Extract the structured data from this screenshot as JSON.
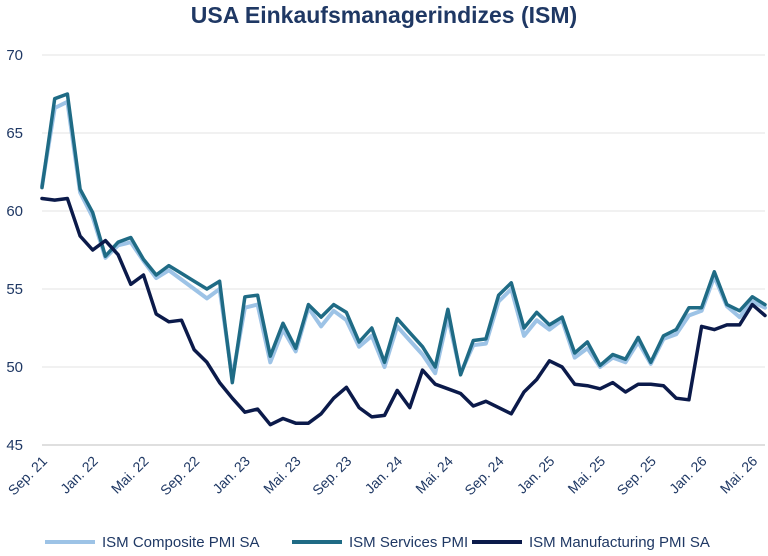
{
  "chart_data": {
    "type": "line",
    "title": "USA Einkaufsmanagerindizes (ISM)",
    "xlabel": "",
    "ylabel": "",
    "ylim": [
      45,
      70
    ],
    "yticks": [
      45,
      50,
      55,
      60,
      65,
      70
    ],
    "x_tick_labels": [
      "Sep. 21",
      "Jan. 22",
      "Mai. 22",
      "Sep. 22",
      "Jan. 23",
      "Mai. 23",
      "Sep. 23",
      "Jan. 24",
      "Mai. 24",
      "Sep. 24",
      "Jan. 25",
      "Mai. 25",
      "Sep. 25",
      "Jan. 26",
      "Mai. 26"
    ],
    "x_start": "Sep. 21",
    "x_end": "Jun. 26",
    "grid": "horizontal",
    "legend_position": "bottom",
    "series": [
      {
        "name": "ISM Composite PMI SA",
        "color": "#9dc3e6",
        "values": [
          61.6,
          66.6,
          67.0,
          61.2,
          59.6,
          57.0,
          57.8,
          58.0,
          56.8,
          55.7,
          56.2,
          55.6,
          55.0,
          54.4,
          55.0,
          49.3,
          53.8,
          54.0,
          50.3,
          52.4,
          51.0,
          53.8,
          52.6,
          53.6,
          53.0,
          51.3,
          52.0,
          50.0,
          52.6,
          51.7,
          50.8,
          49.6,
          53.2,
          49.6,
          51.4,
          51.5,
          54.2,
          55.0,
          52.0,
          53.0,
          52.4,
          53.0,
          50.6,
          51.2,
          50.0,
          50.6,
          50.3,
          51.6,
          50.2,
          51.8,
          52.1,
          53.3,
          53.6,
          55.8,
          53.9,
          53.2,
          54.2,
          53.8
        ]
      },
      {
        "name": "ISM Services PMI",
        "color": "#1f6b85",
        "values": [
          61.5,
          67.2,
          67.5,
          61.4,
          59.9,
          57.1,
          58.0,
          58.3,
          56.9,
          55.9,
          56.5,
          56.0,
          55.5,
          55.0,
          55.5,
          49.0,
          54.5,
          54.6,
          50.7,
          52.8,
          51.2,
          54.0,
          53.2,
          54.0,
          53.5,
          51.6,
          52.5,
          50.3,
          53.1,
          52.2,
          51.3,
          50.0,
          53.7,
          49.5,
          51.7,
          51.8,
          54.6,
          55.4,
          52.5,
          53.5,
          52.7,
          53.2,
          50.9,
          51.6,
          50.1,
          50.8,
          50.5,
          51.9,
          50.3,
          52.0,
          52.4,
          53.8,
          53.8,
          56.1,
          54.0,
          53.6,
          54.5,
          54.0
        ]
      },
      {
        "name": "ISM Manufacturing PMI SA",
        "color": "#0b1a4a",
        "values": [
          60.8,
          60.7,
          60.8,
          58.4,
          57.5,
          58.1,
          57.2,
          55.3,
          55.9,
          53.4,
          52.9,
          53.0,
          51.1,
          50.3,
          49.0,
          48.0,
          47.1,
          47.3,
          46.3,
          46.7,
          46.4,
          46.4,
          47.0,
          48.0,
          48.7,
          47.4,
          46.8,
          46.9,
          48.5,
          47.4,
          49.8,
          48.9,
          48.6,
          48.3,
          47.5,
          47.8,
          47.4,
          47.0,
          48.4,
          49.2,
          50.4,
          50.0,
          48.9,
          48.8,
          48.6,
          49.0,
          48.4,
          48.9,
          48.9,
          48.8,
          48.0,
          47.9,
          52.6,
          52.4,
          52.7,
          52.7,
          54.0,
          53.3
        ]
      }
    ]
  }
}
